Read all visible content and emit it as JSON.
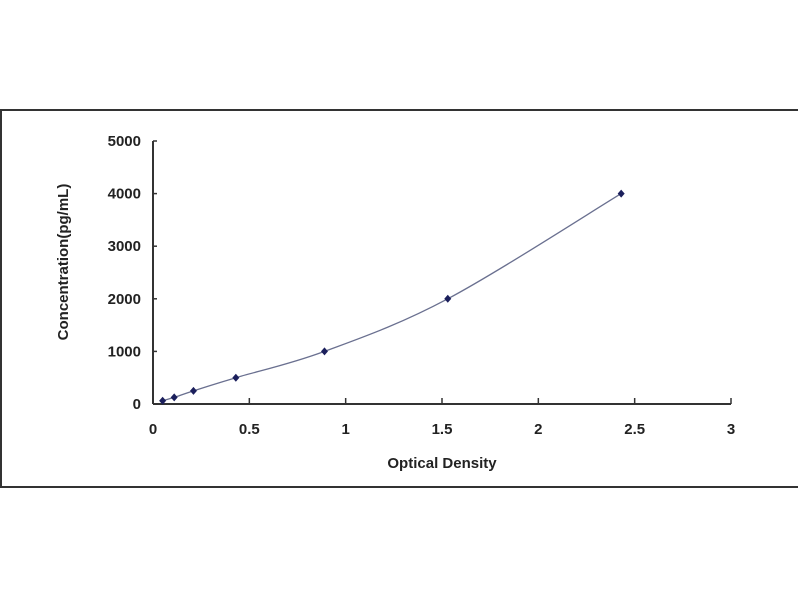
{
  "chart_data": {
    "type": "scatter",
    "title": "",
    "xlabel": "Optical Density",
    "ylabel": "Concentration(pg/mL)",
    "xlim": [
      0,
      3
    ],
    "ylim": [
      0,
      5000
    ],
    "xticks": [
      "0",
      "0.5",
      "1",
      "1.5",
      "2",
      "2.5",
      "3"
    ],
    "yticks": [
      "0",
      "1000",
      "2000",
      "3000",
      "4000",
      "5000"
    ],
    "grid": false,
    "trendline": "smooth curve",
    "colors": {
      "points": "#1b1f5c",
      "line": "#6a7090",
      "axis": "#333333"
    },
    "series": [
      {
        "x": [
          0.05,
          0.11,
          0.21,
          0.43,
          0.89,
          1.53,
          2.43
        ],
        "y": [
          62.5,
          125,
          250,
          500,
          1000,
          2000,
          4000
        ]
      }
    ]
  }
}
